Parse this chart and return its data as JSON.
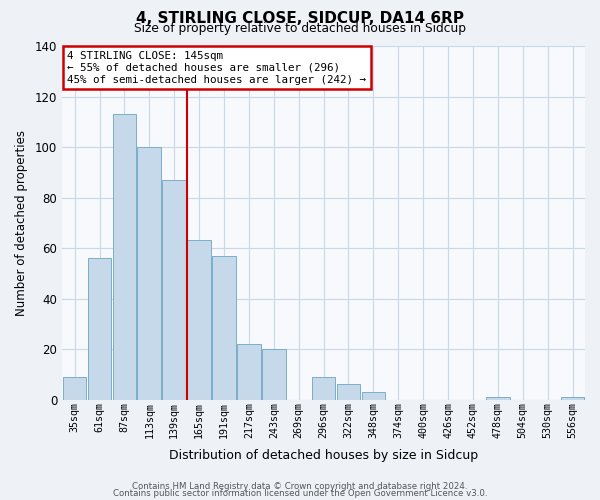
{
  "title": "4, STIRLING CLOSE, SIDCUP, DA14 6RP",
  "subtitle": "Size of property relative to detached houses in Sidcup",
  "bar_labels": [
    "35sqm",
    "61sqm",
    "87sqm",
    "113sqm",
    "139sqm",
    "165sqm",
    "191sqm",
    "217sqm",
    "243sqm",
    "269sqm",
    "296sqm",
    "322sqm",
    "348sqm",
    "374sqm",
    "400sqm",
    "426sqm",
    "452sqm",
    "478sqm",
    "504sqm",
    "530sqm",
    "556sqm"
  ],
  "bar_values": [
    9,
    56,
    113,
    100,
    87,
    63,
    57,
    22,
    20,
    0,
    9,
    6,
    3,
    0,
    0,
    0,
    0,
    1,
    0,
    0,
    1
  ],
  "bar_color": "#c5d9eb",
  "bar_edge_color": "#7aaec8",
  "vline_color": "#cc0000",
  "vline_pos": 4.5,
  "ylim": [
    0,
    140
  ],
  "yticks": [
    0,
    20,
    40,
    60,
    80,
    100,
    120,
    140
  ],
  "ylabel": "Number of detached properties",
  "xlabel": "Distribution of detached houses by size in Sidcup",
  "annotation_lines": [
    "4 STIRLING CLOSE: 145sqm",
    "← 55% of detached houses are smaller (296)",
    "45% of semi-detached houses are larger (242) →"
  ],
  "annotation_box_facecolor": "#ffffff",
  "annotation_box_edgecolor": "#cc0000",
  "footer_line1": "Contains HM Land Registry data © Crown copyright and database right 2024.",
  "footer_line2": "Contains public sector information licensed under the Open Government Licence v3.0.",
  "fig_facecolor": "#eef2f7",
  "plot_facecolor": "#f7f9fc",
  "grid_color": "#c8d8e8"
}
